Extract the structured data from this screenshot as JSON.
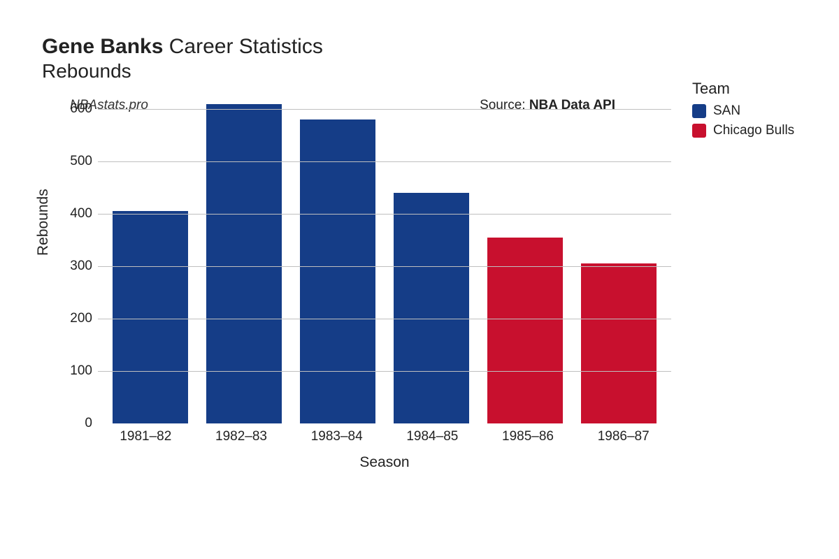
{
  "title": {
    "bold_part": "Gene Banks",
    "rest_part": " Career Statistics",
    "subtitle": "Rebounds",
    "fontsize_main": 30,
    "fontsize_sub": 28
  },
  "header": {
    "site_label": "NBAstats.pro",
    "source_prefix": "Source: ",
    "source_bold": "NBA Data API"
  },
  "chart": {
    "type": "bar",
    "x_axis_title": "Season",
    "y_axis_title": "Rebounds",
    "categories": [
      "1981–82",
      "1982–83",
      "1983–84",
      "1984–85",
      "1985–86",
      "1986–87"
    ],
    "values": [
      405,
      610,
      580,
      440,
      355,
      305
    ],
    "bar_colors": [
      "#153d87",
      "#153d87",
      "#153d87",
      "#153d87",
      "#c8102e",
      "#c8102e"
    ],
    "teams": [
      "SAN",
      "SAN",
      "SAN",
      "SAN",
      "Chicago Bulls",
      "Chicago Bulls"
    ],
    "y_ticks": [
      0,
      100,
      200,
      300,
      400,
      500,
      600
    ],
    "y_max": 640,
    "background_color": "#ffffff",
    "grid_color": "#bfbfbf",
    "bar_width_ratio": 0.88,
    "tick_fontsize": 19,
    "axis_title_fontsize": 21
  },
  "legend": {
    "title": "Team",
    "items": [
      {
        "label": "SAN",
        "color": "#153d87"
      },
      {
        "label": "Chicago Bulls",
        "color": "#c8102e"
      }
    ],
    "title_fontsize": 22,
    "label_fontsize": 19
  }
}
